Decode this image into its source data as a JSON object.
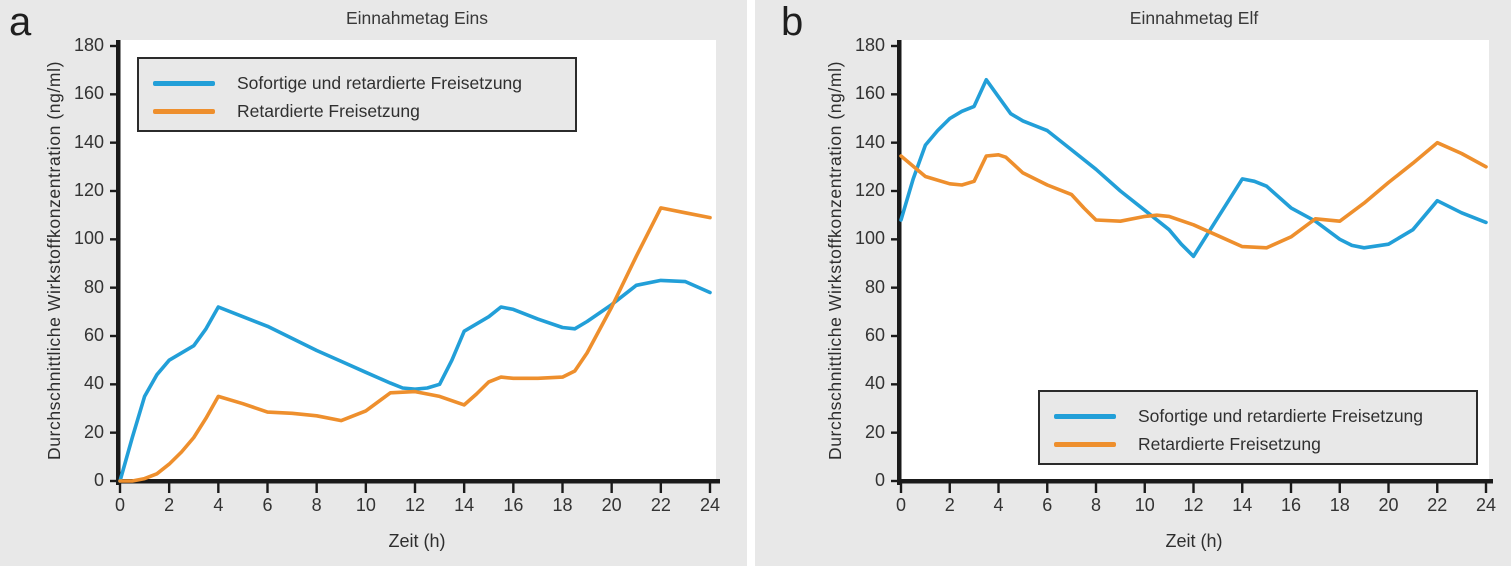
{
  "page": {
    "background": "#ffffff",
    "panel_background": "#e8e8e8"
  },
  "colors": {
    "immediate_and_retarded": "#229fd8",
    "retarded": "#ee8f2d",
    "axis": "#1a1a1a",
    "text": "#333333",
    "legend_border": "#2b2b2b",
    "plot_background": "#ffffff"
  },
  "chart_data": [
    {
      "type": "line",
      "panel_letter": "a",
      "title": "Einnahmetag Eins",
      "xlabel": "Zeit (h)",
      "ylabel": "Durchschnittliche Wirkstoffkonzentration (ng/ml)",
      "xlim": [
        0,
        24
      ],
      "ylim": [
        0,
        180
      ],
      "x_ticks": [
        0,
        2,
        4,
        6,
        8,
        10,
        12,
        14,
        16,
        18,
        20,
        22,
        24
      ],
      "y_ticks": [
        0,
        20,
        40,
        60,
        80,
        100,
        120,
        140,
        160,
        180
      ],
      "grid": false,
      "legend_position": "upper-left",
      "series": [
        {
          "name": "Sofortige und retardierte Freisetzung",
          "color_key": "immediate_and_retarded",
          "x": [
            0,
            0.5,
            1,
            1.5,
            2,
            2.5,
            3,
            3.5,
            4,
            5,
            6,
            7,
            8,
            9,
            10,
            11,
            11.5,
            12,
            12.5,
            13,
            13.5,
            14,
            15,
            15.5,
            16,
            17,
            18,
            18.5,
            19,
            20,
            21,
            22,
            23,
            24
          ],
          "y": [
            0,
            18,
            35,
            44,
            50,
            53,
            56,
            63,
            72,
            68,
            64,
            59,
            54,
            49.5,
            45,
            40.5,
            38.5,
            38,
            38.5,
            40,
            50,
            62,
            68,
            72,
            71,
            67,
            63.5,
            63,
            66,
            73,
            81,
            83,
            82.5,
            78
          ]
        },
        {
          "name": "Retardierte Freisetzung",
          "color_key": "retarded",
          "x": [
            0,
            0.5,
            1,
            1.5,
            2,
            2.5,
            3,
            3.5,
            4,
            5,
            6,
            7,
            8,
            9,
            10,
            11,
            12,
            13,
            14,
            14.5,
            15,
            15.5,
            16,
            17,
            18,
            18.5,
            19,
            20,
            21,
            22,
            23,
            24
          ],
          "y": [
            0,
            0,
            1,
            3,
            7,
            12,
            18,
            26,
            35,
            32,
            28.5,
            28,
            27,
            25,
            29,
            36.5,
            37,
            35,
            31.5,
            36,
            41,
            43,
            42.5,
            42.5,
            43,
            45.5,
            53,
            72,
            93,
            113,
            111,
            109
          ]
        }
      ]
    },
    {
      "type": "line",
      "panel_letter": "b",
      "title": "Einnahmetag Elf",
      "xlabel": "Zeit (h)",
      "ylabel": "Durchschnittliche Wirkstoffkonzentration (ng/ml)",
      "xlim": [
        0,
        24
      ],
      "ylim": [
        0,
        180
      ],
      "x_ticks": [
        0,
        2,
        4,
        6,
        8,
        10,
        12,
        14,
        16,
        18,
        20,
        22,
        24
      ],
      "y_ticks": [
        0,
        20,
        40,
        60,
        80,
        100,
        120,
        140,
        160,
        180
      ],
      "grid": false,
      "legend_position": "lower-right",
      "series": [
        {
          "name": "Sofortige und retardierte Freisetzung",
          "color_key": "immediate_and_retarded",
          "x": [
            0,
            0.5,
            1,
            1.5,
            2,
            2.5,
            3,
            3.5,
            4,
            4.5,
            5,
            6,
            7,
            8,
            9,
            10,
            11,
            11.5,
            12,
            13,
            14,
            14.5,
            15,
            16,
            17,
            18,
            18.5,
            19,
            20,
            21,
            22,
            23,
            24
          ],
          "y": [
            108,
            125,
            139,
            145,
            150,
            153,
            155,
            166,
            159,
            152,
            149,
            145,
            137,
            129,
            120,
            112,
            104,
            98,
            93,
            109,
            125,
            124,
            122,
            113,
            107.5,
            100,
            97.5,
            96.5,
            98,
            104,
            116,
            111,
            107
          ]
        },
        {
          "name": "Retardierte Freisetzung",
          "color_key": "retarded",
          "x": [
            0,
            1,
            2,
            2.5,
            3,
            3.5,
            4,
            4.3,
            5,
            6,
            7,
            7.5,
            8,
            9,
            10,
            10.5,
            11,
            12,
            13,
            14,
            15,
            16,
            17,
            18,
            19,
            20,
            21,
            22,
            23,
            24
          ],
          "y": [
            134.5,
            126,
            123,
            122.5,
            124,
            134.5,
            135,
            134,
            127.5,
            122.5,
            118.5,
            113,
            108,
            107.5,
            109.5,
            110,
            109.5,
            106,
            101.5,
            97,
            96.5,
            101,
            108.5,
            107.5,
            115,
            123.5,
            131.5,
            140,
            135.5,
            130
          ]
        }
      ]
    }
  ]
}
